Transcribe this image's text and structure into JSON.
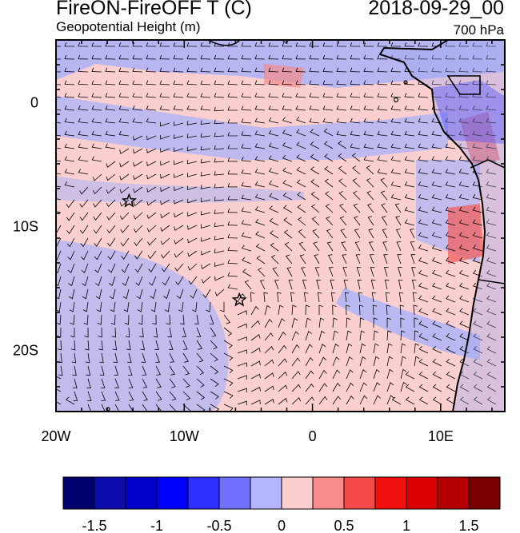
{
  "header": {
    "title": "FireON-FireOFF T (C)",
    "subtitle": "Geopotential Height (m)",
    "datetime": "2018-09-29_00",
    "level": "700 hPa"
  },
  "map": {
    "lon_range": [
      -20,
      15
    ],
    "lat_range": [
      -25,
      5
    ],
    "lon_ticks": [
      {
        "value": -20,
        "label": "20W"
      },
      {
        "value": -10,
        "label": "10W"
      },
      {
        "value": 0,
        "label": "0"
      },
      {
        "value": 10,
        "label": "10E"
      }
    ],
    "lat_ticks": [
      {
        "value": 0,
        "label": "0"
      },
      {
        "value": -10,
        "label": "10S"
      },
      {
        "value": -20,
        "label": "20S"
      }
    ],
    "markers": [
      {
        "name": "star-marker",
        "lon": -14.3,
        "lat": -8.0
      },
      {
        "name": "star-marker",
        "lon": -5.7,
        "lat": -16.0
      }
    ],
    "colors": {
      "ocean_neutral": "#fbcfcf",
      "cool_band": "#aab2f8",
      "coast": "#000000"
    }
  },
  "colorbar": {
    "labels": [
      "-1.5",
      "-1",
      "-0.5",
      "0",
      "0.5",
      "1",
      "1.5"
    ],
    "colors": [
      "#00006e",
      "#0c0cad",
      "#0000c8",
      "#0000ff",
      "#2f2fff",
      "#7070ff",
      "#b4b4ff",
      "#fbcfcf",
      "#f88c8c",
      "#f54848",
      "#f01010",
      "#dc0000",
      "#b40000",
      "#780000"
    ]
  }
}
